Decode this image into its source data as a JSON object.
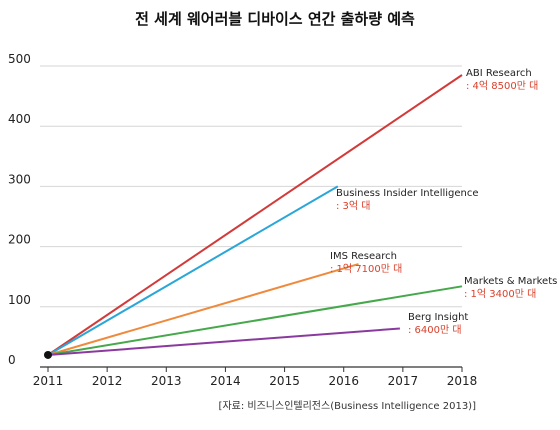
{
  "chart_data": {
    "type": "line",
    "title": "전 세계 웨어러블 디바이스 연간 출하량 예측",
    "source": "[자료: 비즈니스인텔리전스(Business Intelligence 2013)]",
    "xlabel": "",
    "ylabel": "",
    "xlim": [
      2011,
      2018
    ],
    "ylim": [
      0,
      500
    ],
    "x_ticks": [
      "2011",
      "2012",
      "2013",
      "2014",
      "2015",
      "2016",
      "2017",
      "2018"
    ],
    "y_ticks": [
      "0",
      "100",
      "200",
      "300",
      "400",
      "500"
    ],
    "grid": "horizontal",
    "start_point": {
      "x": 2011,
      "y": 20
    },
    "series": [
      {
        "name": "ABI Research",
        "value_label": ": 4억 8500만 대",
        "color": "#d33a3a",
        "points": [
          [
            2011,
            20
          ],
          [
            2018,
            485
          ]
        ]
      },
      {
        "name": "Business Insider Intelligence",
        "value_label": ": 3억 대",
        "color": "#2aa6d8",
        "points": [
          [
            2011,
            20
          ],
          [
            2015.9,
            300
          ]
        ]
      },
      {
        "name": "IMS Research",
        "value_label": ": 1억 7100만 대",
        "color": "#ef8a3c",
        "points": [
          [
            2011,
            20
          ],
          [
            2016.25,
            171
          ]
        ]
      },
      {
        "name": "Markets & Markets",
        "value_label": ": 1억 3400만 대",
        "color": "#45a84a",
        "points": [
          [
            2011,
            20
          ],
          [
            2018,
            134
          ]
        ]
      },
      {
        "name": "Berg Insight",
        "value_label": ": 6400만 대",
        "color": "#8a3a9e",
        "points": [
          [
            2011,
            20
          ],
          [
            2016.95,
            64
          ]
        ]
      }
    ]
  }
}
